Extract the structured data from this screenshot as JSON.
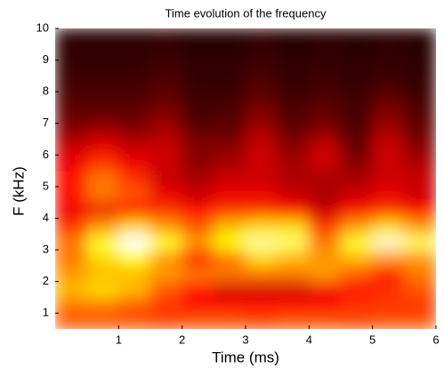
{
  "chart_data": {
    "type": "heatmap",
    "title": "Time evolution of the frequency",
    "xlabel": "Time (ms)",
    "ylabel": "F (kHz)",
    "xlim": [
      0,
      6
    ],
    "xticks": [
      1,
      2,
      3,
      4,
      5,
      6
    ],
    "ylim": [
      0.5,
      10
    ],
    "yticks": [
      1,
      2,
      3,
      4,
      5,
      6,
      7,
      8,
      9,
      10
    ],
    "colormap": "hot",
    "clim": [
      0,
      1
    ],
    "x": [
      0.25,
      0.75,
      1.25,
      1.75,
      2.25,
      2.75,
      3.25,
      3.75,
      4.25,
      4.75,
      5.25,
      5.75
    ],
    "y": [
      0.75,
      1.25,
      1.75,
      2.25,
      2.75,
      3.25,
      3.75,
      4.25,
      4.75,
      5.25,
      5.75,
      6.25,
      6.75,
      7.25,
      7.75,
      8.25,
      8.75,
      9.25,
      9.75
    ],
    "z": [
      [
        0.5,
        0.5,
        0.5,
        0.48,
        0.5,
        0.5,
        0.48,
        0.5,
        0.5,
        0.48,
        0.5,
        0.5
      ],
      [
        0.55,
        0.55,
        0.5,
        0.45,
        0.4,
        0.4,
        0.4,
        0.4,
        0.4,
        0.45,
        0.45,
        0.45
      ],
      [
        0.65,
        0.7,
        0.65,
        0.5,
        0.4,
        0.3,
        0.3,
        0.3,
        0.35,
        0.4,
        0.45,
        0.5
      ],
      [
        0.6,
        0.65,
        0.65,
        0.6,
        0.55,
        0.55,
        0.55,
        0.55,
        0.6,
        0.5,
        0.4,
        0.55
      ],
      [
        0.55,
        0.7,
        0.75,
        0.6,
        0.4,
        0.55,
        0.7,
        0.65,
        0.6,
        0.65,
        0.6,
        0.6
      ],
      [
        0.55,
        0.8,
        1.0,
        0.8,
        0.6,
        0.75,
        0.9,
        0.85,
        0.55,
        0.8,
        0.95,
        0.85
      ],
      [
        0.45,
        0.6,
        0.7,
        0.6,
        0.5,
        0.65,
        0.7,
        0.7,
        0.45,
        0.6,
        0.7,
        0.6
      ],
      [
        0.35,
        0.35,
        0.4,
        0.45,
        0.4,
        0.45,
        0.45,
        0.4,
        0.3,
        0.4,
        0.45,
        0.4
      ],
      [
        0.4,
        0.55,
        0.5,
        0.35,
        0.3,
        0.35,
        0.35,
        0.3,
        0.25,
        0.3,
        0.35,
        0.3
      ],
      [
        0.4,
        0.55,
        0.45,
        0.3,
        0.25,
        0.3,
        0.3,
        0.25,
        0.25,
        0.25,
        0.3,
        0.3
      ],
      [
        0.35,
        0.45,
        0.35,
        0.3,
        0.2,
        0.25,
        0.3,
        0.25,
        0.3,
        0.2,
        0.3,
        0.25
      ],
      [
        0.3,
        0.35,
        0.3,
        0.3,
        0.2,
        0.2,
        0.3,
        0.2,
        0.3,
        0.15,
        0.3,
        0.2
      ],
      [
        0.2,
        0.25,
        0.2,
        0.25,
        0.15,
        0.15,
        0.25,
        0.15,
        0.2,
        0.12,
        0.25,
        0.15
      ],
      [
        0.15,
        0.15,
        0.15,
        0.2,
        0.1,
        0.12,
        0.2,
        0.12,
        0.15,
        0.1,
        0.2,
        0.12
      ],
      [
        0.12,
        0.12,
        0.12,
        0.15,
        0.1,
        0.1,
        0.15,
        0.1,
        0.12,
        0.1,
        0.15,
        0.1
      ],
      [
        0.1,
        0.1,
        0.1,
        0.12,
        0.08,
        0.08,
        0.12,
        0.08,
        0.1,
        0.08,
        0.1,
        0.08
      ],
      [
        0.08,
        0.08,
        0.08,
        0.1,
        0.07,
        0.07,
        0.1,
        0.07,
        0.08,
        0.07,
        0.08,
        0.07
      ],
      [
        0.07,
        0.07,
        0.07,
        0.08,
        0.06,
        0.06,
        0.08,
        0.06,
        0.07,
        0.06,
        0.07,
        0.06
      ],
      [
        0.06,
        0.06,
        0.06,
        0.07,
        0.05,
        0.05,
        0.07,
        0.05,
        0.06,
        0.05,
        0.06,
        0.05
      ]
    ]
  }
}
